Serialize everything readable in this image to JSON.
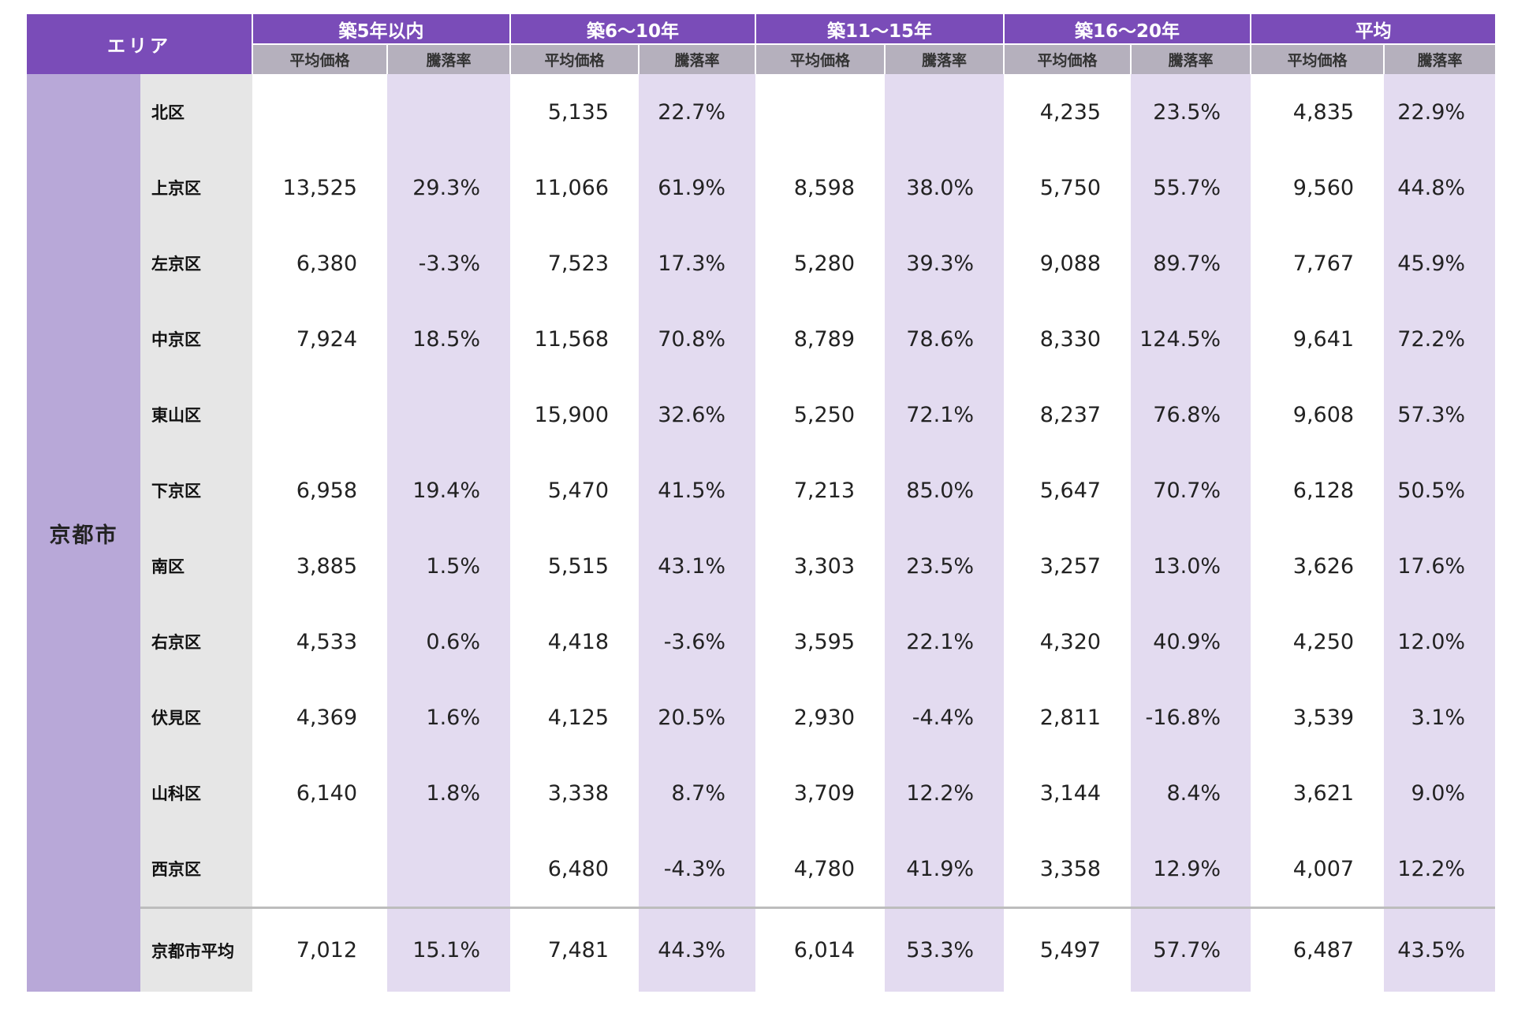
{
  "header": {
    "area_label": "エリア",
    "groups": [
      "築5年以内",
      "築6〜10年",
      "築11〜15年",
      "築16〜20年",
      "平均"
    ],
    "price_label": "平均価格",
    "rate_label": "騰落率"
  },
  "city": "京都市",
  "rows": [
    {
      "ward": "北区",
      "cells": [
        [
          "",
          ""
        ],
        [
          "5,135",
          "22.7%"
        ],
        [
          "",
          ""
        ],
        [
          "4,235",
          "23.5%"
        ],
        [
          "4,835",
          "22.9%"
        ]
      ]
    },
    {
      "ward": "上京区",
      "cells": [
        [
          "13,525",
          "29.3%"
        ],
        [
          "11,066",
          "61.9%"
        ],
        [
          "8,598",
          "38.0%"
        ],
        [
          "5,750",
          "55.7%"
        ],
        [
          "9,560",
          "44.8%"
        ]
      ]
    },
    {
      "ward": "左京区",
      "cells": [
        [
          "6,380",
          "-3.3%"
        ],
        [
          "7,523",
          "17.3%"
        ],
        [
          "5,280",
          "39.3%"
        ],
        [
          "9,088",
          "89.7%"
        ],
        [
          "7,767",
          "45.9%"
        ]
      ]
    },
    {
      "ward": "中京区",
      "cells": [
        [
          "7,924",
          "18.5%"
        ],
        [
          "11,568",
          "70.8%"
        ],
        [
          "8,789",
          "78.6%"
        ],
        [
          "8,330",
          "124.5%"
        ],
        [
          "9,641",
          "72.2%"
        ]
      ]
    },
    {
      "ward": "東山区",
      "cells": [
        [
          "",
          ""
        ],
        [
          "15,900",
          "32.6%"
        ],
        [
          "5,250",
          "72.1%"
        ],
        [
          "8,237",
          "76.8%"
        ],
        [
          "9,608",
          "57.3%"
        ]
      ]
    },
    {
      "ward": "下京区",
      "cells": [
        [
          "6,958",
          "19.4%"
        ],
        [
          "5,470",
          "41.5%"
        ],
        [
          "7,213",
          "85.0%"
        ],
        [
          "5,647",
          "70.7%"
        ],
        [
          "6,128",
          "50.5%"
        ]
      ]
    },
    {
      "ward": "南区",
      "cells": [
        [
          "3,885",
          "1.5%"
        ],
        [
          "5,515",
          "43.1%"
        ],
        [
          "3,303",
          "23.5%"
        ],
        [
          "3,257",
          "13.0%"
        ],
        [
          "3,626",
          "17.6%"
        ]
      ]
    },
    {
      "ward": "右京区",
      "cells": [
        [
          "4,533",
          "0.6%"
        ],
        [
          "4,418",
          "-3.6%"
        ],
        [
          "3,595",
          "22.1%"
        ],
        [
          "4,320",
          "40.9%"
        ],
        [
          "4,250",
          "12.0%"
        ]
      ]
    },
    {
      "ward": "伏見区",
      "cells": [
        [
          "4,369",
          "1.6%"
        ],
        [
          "4,125",
          "20.5%"
        ],
        [
          "2,930",
          "-4.4%"
        ],
        [
          "2,811",
          "-16.8%"
        ],
        [
          "3,539",
          "3.1%"
        ]
      ]
    },
    {
      "ward": "山科区",
      "cells": [
        [
          "6,140",
          "1.8%"
        ],
        [
          "3,338",
          "8.7%"
        ],
        [
          "3,709",
          "12.2%"
        ],
        [
          "3,144",
          "8.4%"
        ],
        [
          "3,621",
          "9.0%"
        ]
      ]
    },
    {
      "ward": "西京区",
      "cells": [
        [
          "",
          ""
        ],
        [
          "6,480",
          "-4.3%"
        ],
        [
          "4,780",
          "41.9%"
        ],
        [
          "3,358",
          "12.9%"
        ],
        [
          "4,007",
          "12.2%"
        ]
      ]
    }
  ],
  "average": {
    "ward": "京都市平均",
    "cells": [
      [
        "7,012",
        "15.1%"
      ],
      [
        "7,481",
        "44.3%"
      ],
      [
        "6,014",
        "53.3%"
      ],
      [
        "5,497",
        "57.7%"
      ],
      [
        "6,487",
        "43.5%"
      ]
    ]
  }
}
